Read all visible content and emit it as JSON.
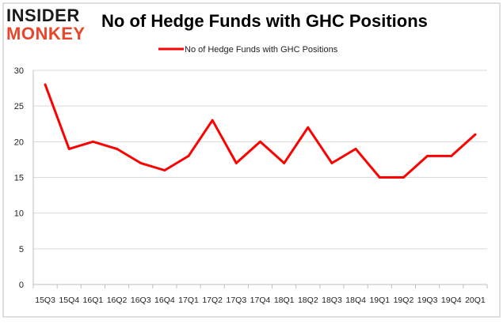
{
  "logo": {
    "top_text": "INSIDER",
    "bottom_text": "MONKEY"
  },
  "chart_data": {
    "type": "line",
    "title": "No of Hedge Funds with GHC Positions",
    "categories": [
      "15Q3",
      "15Q4",
      "16Q1",
      "16Q2",
      "16Q3",
      "16Q4",
      "17Q1",
      "17Q2",
      "17Q3",
      "17Q4",
      "18Q1",
      "18Q2",
      "18Q3",
      "18Q4",
      "19Q1",
      "19Q2",
      "19Q3",
      "19Q4",
      "20Q1"
    ],
    "series": [
      {
        "name": "No of Hedge Funds with GHC Positions",
        "values": [
          28,
          19,
          20,
          19,
          17,
          16,
          18,
          23,
          17,
          20,
          17,
          22,
          17,
          19,
          15,
          15,
          18,
          18,
          21
        ]
      }
    ],
    "yticks": [
      0,
      5,
      10,
      15,
      20,
      25,
      30
    ],
    "ylim": [
      0,
      30
    ],
    "grid": true,
    "legend_position": "top",
    "colors": {
      "line": "#ff0000",
      "grid": "#d9d9d9",
      "logo_top": "#1a1a1a",
      "logo_bottom": "#e8452c",
      "frame": "#bfbfbf"
    }
  }
}
